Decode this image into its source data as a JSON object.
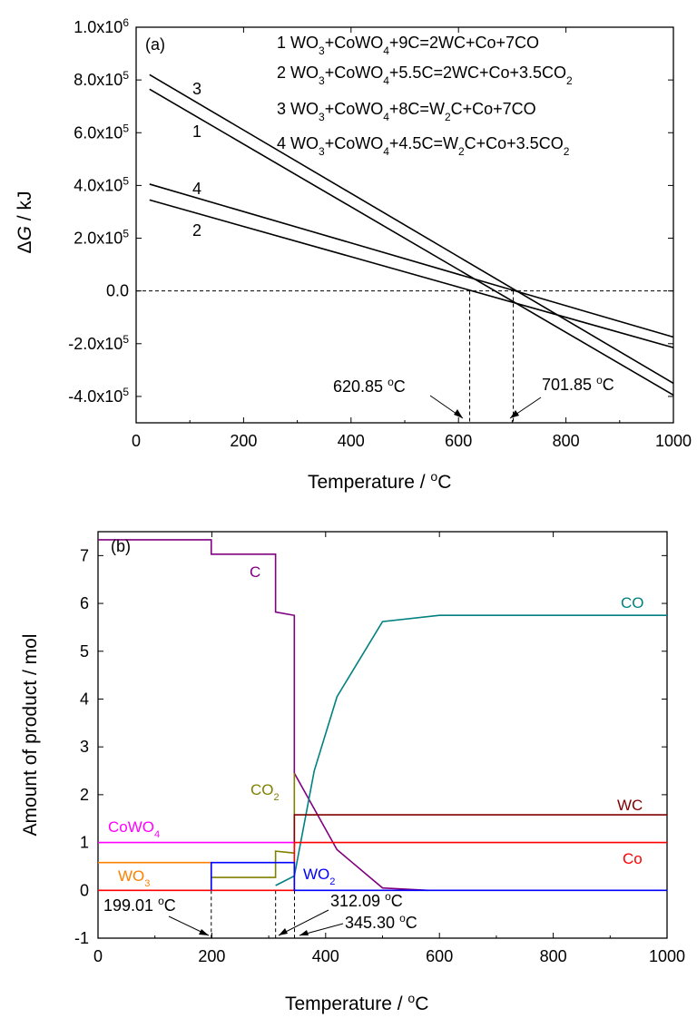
{
  "chart_data": [
    {
      "panel": "(a)",
      "type": "line",
      "xlabel": "Temperature / °C",
      "ylabel": "ΔG / kJ",
      "xlim": [
        0,
        1000
      ],
      "ylim": [
        -500000,
        1000000
      ],
      "x_ticks": [
        "0",
        "200",
        "400",
        "600",
        "800",
        "1000"
      ],
      "y_ticks": [
        "-4.0x10^5",
        "-2.0x10^5",
        "0.0",
        "2.0x10^5",
        "4.0x10^5",
        "6.0x10^5",
        "8.0x10^5",
        "1.0x10^6"
      ],
      "series": [
        {
          "name": "1",
          "label": "1  WO3+CoWO4+9C=2WC+Co+7CO",
          "x": [
            25,
            1000
          ],
          "y": [
            765000,
            -395000
          ]
        },
        {
          "name": "2",
          "label": "2  WO3+CoWO4+5.5C=2WC+Co+3.5CO2",
          "x": [
            25,
            1000
          ],
          "y": [
            345000,
            -215000
          ]
        },
        {
          "name": "3",
          "label": "3  WO3+CoWO4+8C=W2C+Co+7CO",
          "x": [
            25,
            1000
          ],
          "y": [
            820000,
            -350000
          ]
        },
        {
          "name": "4",
          "label": "4  WO3+CoWO4+4.5C=W2C+Co+3.5CO2",
          "x": [
            25,
            1000
          ],
          "y": [
            405000,
            -175000
          ]
        }
      ],
      "reference_lines": {
        "y": 0,
        "x": [
          620.85,
          701.85
        ]
      },
      "annotations": [
        {
          "text": "620.85 °C",
          "x": 620.85
        },
        {
          "text": "701.85 °C",
          "x": 701.85
        }
      ],
      "legend": "top-right",
      "grid": false
    },
    {
      "panel": "(b)",
      "type": "line",
      "xlabel": "Temperature / °C",
      "ylabel": "Amount of product / mol",
      "xlim": [
        0,
        1000
      ],
      "ylim": [
        -1,
        7.5
      ],
      "x_ticks": [
        "0",
        "200",
        "400",
        "600",
        "800",
        "1000"
      ],
      "y_ticks": [
        "-1",
        "0",
        "1",
        "2",
        "3",
        "4",
        "5",
        "6",
        "7"
      ],
      "series": [
        {
          "name": "C",
          "color": "#800080",
          "x": [
            0,
            199,
            199,
            312,
            312,
            345,
            345,
            420,
            500,
            580
          ],
          "y": [
            7.33,
            7.33,
            7.03,
            7.03,
            5.82,
            5.75,
            2.45,
            0.85,
            0.05,
            0.0
          ]
        },
        {
          "name": "CO",
          "color": "#008080",
          "x": [
            312,
            345,
            380,
            420,
            500,
            600,
            1000
          ],
          "y": [
            0.1,
            0.3,
            2.5,
            4.05,
            5.62,
            5.75,
            5.75
          ]
        },
        {
          "name": "CO2",
          "color": "#808000",
          "x": [
            199,
            312,
            312,
            345,
            345
          ],
          "y": [
            0.27,
            0.27,
            0.82,
            0.78,
            2.45
          ]
        },
        {
          "name": "WC",
          "color": "#800000",
          "x": [
            345,
            345,
            1000
          ],
          "y": [
            0.9,
            1.58,
            1.58
          ]
        },
        {
          "name": "CoWO4",
          "color": "#ff00ff",
          "x": [
            0,
            345
          ],
          "y": [
            1.0,
            1.0
          ]
        },
        {
          "name": "Co",
          "color": "#ff0000",
          "x": [
            0,
            345,
            345,
            1000
          ],
          "y": [
            0.0,
            0.0,
            1.0,
            1.0
          ]
        },
        {
          "name": "WO3",
          "color": "#ff8000",
          "x": [
            0,
            199,
            199
          ],
          "y": [
            0.58,
            0.58,
            0.0
          ]
        },
        {
          "name": "WO2",
          "color": "#0000ff",
          "x": [
            199,
            199,
            345,
            345,
            1000
          ],
          "y": [
            0.0,
            0.58,
            0.58,
            0.0,
            0.0
          ]
        }
      ],
      "reference_lines": {
        "x": [
          199.01,
          312.09,
          345.3
        ]
      },
      "annotations": [
        {
          "text": "199.01 °C",
          "x": 199.01
        },
        {
          "text": "312.09 °C",
          "x": 312.09
        },
        {
          "text": "345.30 °C",
          "x": 345.3
        }
      ],
      "legend": "none",
      "grid": false
    }
  ]
}
